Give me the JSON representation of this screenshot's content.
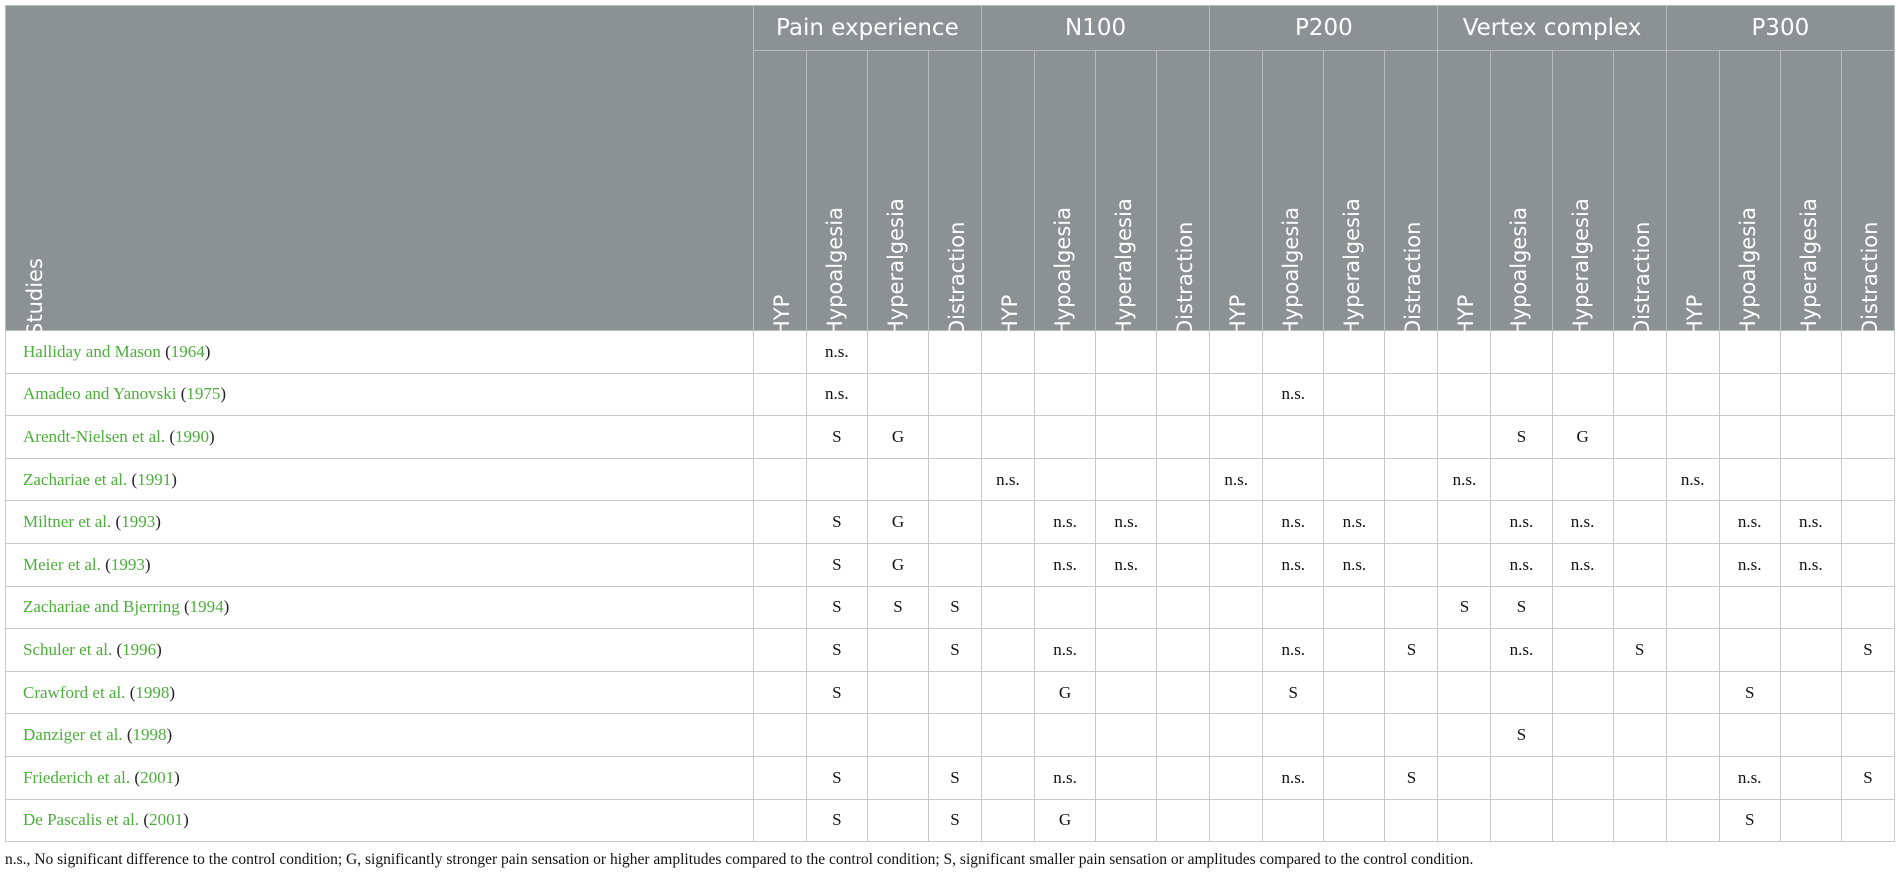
{
  "header": {
    "studies_label": "Studies",
    "groups": [
      "Pain experience",
      "N100",
      "P200",
      "Vertex complex",
      "P300"
    ],
    "subcolumns": [
      "HYP",
      "Hypoalgesia",
      "Hyperalgesia",
      "Distraction"
    ]
  },
  "rows": [
    {
      "authors": "Halliday and Mason",
      "year": "1964",
      "cells": [
        "",
        "n.s.",
        "",
        "",
        "",
        "",
        "",
        "",
        "",
        "",
        "",
        "",
        "",
        "",
        "",
        "",
        "",
        "",
        "",
        ""
      ]
    },
    {
      "authors": "Amadeo and Yanovski",
      "year": "1975",
      "cells": [
        "",
        "n.s.",
        "",
        "",
        "",
        "",
        "",
        "",
        "",
        "n.s.",
        "",
        "",
        "",
        "",
        "",
        "",
        "",
        "",
        "",
        ""
      ]
    },
    {
      "authors": "Arendt-Nielsen et al.",
      "year": "1990",
      "cells": [
        "",
        "S",
        "G",
        "",
        "",
        "",
        "",
        "",
        "",
        "",
        "",
        "",
        "",
        "S",
        "G",
        "",
        "",
        "",
        "",
        ""
      ]
    },
    {
      "authors": "Zachariae et al.",
      "year": "1991",
      "cells": [
        "",
        "",
        "",
        "",
        "n.s.",
        "",
        "",
        "",
        "n.s.",
        "",
        "",
        "",
        "n.s.",
        "",
        "",
        "",
        "n.s.",
        "",
        "",
        ""
      ]
    },
    {
      "authors": "Miltner et al.",
      "year": "1993",
      "cells": [
        "",
        "S",
        "G",
        "",
        "",
        "n.s.",
        "n.s.",
        "",
        "",
        "n.s.",
        "n.s.",
        "",
        "",
        "n.s.",
        "n.s.",
        "",
        "",
        "n.s.",
        "n.s.",
        ""
      ]
    },
    {
      "authors": "Meier et al.",
      "year": "1993",
      "cells": [
        "",
        "S",
        "G",
        "",
        "",
        "n.s.",
        "n.s.",
        "",
        "",
        "n.s.",
        "n.s.",
        "",
        "",
        "n.s.",
        "n.s.",
        "",
        "",
        "n.s.",
        "n.s.",
        ""
      ]
    },
    {
      "authors": "Zachariae and Bjerring",
      "year": "1994",
      "cells": [
        "",
        "S",
        "S",
        "S",
        "",
        "",
        "",
        "",
        "",
        "",
        "",
        "",
        "S",
        "S",
        "",
        "",
        "",
        "",
        "",
        ""
      ]
    },
    {
      "authors": "Schuler et al.",
      "year": "1996",
      "cells": [
        "",
        "S",
        "",
        "S",
        "",
        "n.s.",
        "",
        "",
        "",
        "n.s.",
        "",
        "S",
        "",
        "n.s.",
        "",
        "S",
        "",
        "",
        "",
        "S"
      ]
    },
    {
      "authors": "Crawford et al.",
      "year": "1998",
      "cells": [
        "",
        "S",
        "",
        "",
        "",
        "G",
        "",
        "",
        "",
        "S",
        "",
        "",
        "",
        "",
        "",
        "",
        "",
        "S",
        "",
        ""
      ]
    },
    {
      "authors": "Danziger et al.",
      "year": "1998",
      "cells": [
        "",
        "",
        "",
        "",
        "",
        "",
        "",
        "",
        "",
        "",
        "",
        "",
        "",
        "S",
        "",
        "",
        "",
        "",
        "",
        ""
      ]
    },
    {
      "authors": "Friederich et al.",
      "year": "2001",
      "cells": [
        "",
        "S",
        "",
        "S",
        "",
        "n.s.",
        "",
        "",
        "",
        "n.s.",
        "",
        "S",
        "",
        "",
        "",
        "",
        "",
        "n.s.",
        "",
        "S"
      ]
    },
    {
      "authors": "De Pascalis et al.",
      "year": "2001",
      "cells": [
        "",
        "S",
        "",
        "S",
        "",
        "G",
        "",
        "",
        "",
        "",
        "",
        "",
        "",
        "",
        "",
        "",
        "",
        "S",
        "",
        ""
      ]
    }
  ],
  "footnote": "n.s., No significant difference to the control condition; G, significantly stronger pain sensation or higher amplitudes compared to the control condition; S, significant smaller pain sensation or amplitudes compared to the control condition."
}
